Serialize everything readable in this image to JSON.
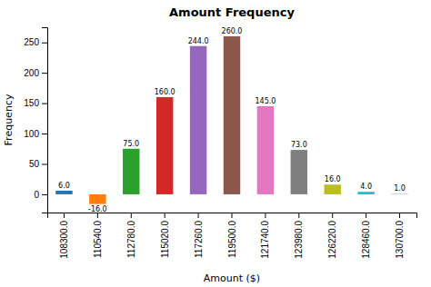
{
  "chart_data": {
    "type": "bar",
    "title": "Amount Frequency",
    "xlabel": "Amount ($)",
    "ylabel": "Frequency",
    "categories": [
      "108300.0",
      "110540.0",
      "112780.0",
      "115020.0",
      "117260.0",
      "119500.0",
      "121740.0",
      "123980.0",
      "126220.0",
      "128460.0",
      "130700.0"
    ],
    "values": [
      6.0,
      -16.0,
      75.0,
      160.0,
      244.0,
      260.0,
      145.0,
      73.0,
      16.0,
      4.0,
      1.0
    ],
    "value_labels": [
      "6.0",
      "-16.0",
      "75.0",
      "160.0",
      "244.0",
      "260.0",
      "145.0",
      "73.0",
      "16.0",
      "4.0",
      "1.0"
    ],
    "colors": [
      "#1f77b4",
      "#ff7f0e",
      "#2ca02c",
      "#d62728",
      "#9467bd",
      "#8c564b",
      "#e377c2",
      "#7f7f7f",
      "#bcbd22",
      "#17becf",
      "#aec7e8"
    ],
    "ylim": [
      -30,
      275
    ],
    "yticks": [
      0,
      50,
      100,
      150,
      200,
      250
    ],
    "grid": false,
    "data_labels": true
  }
}
